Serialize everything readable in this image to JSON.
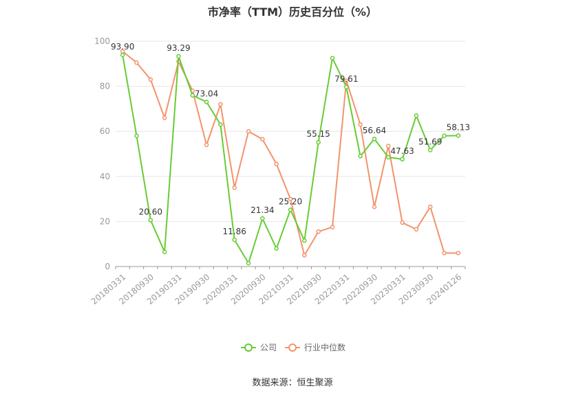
{
  "chart_data": {
    "type": "line",
    "title": "市净率（TTM）历史百分位（%）",
    "source": "数据来源：恒生聚源",
    "ylim": [
      0,
      100
    ],
    "y_ticks": [
      "0",
      "20",
      "40",
      "60",
      "80",
      "100"
    ],
    "x_tick_labels": [
      "20180331",
      "20180930",
      "20190331",
      "20190930",
      "20200331",
      "20200930",
      "20210331",
      "20210930",
      "20220331",
      "20220930",
      "20230331",
      "20230930",
      "20240126"
    ],
    "grid": true,
    "legend_position": "bottom",
    "series": [
      {
        "name": "公司",
        "color": "#66cc33",
        "values": [
          93.9,
          58.0,
          20.6,
          6.5,
          93.29,
          76.0,
          73.04,
          63.0,
          11.86,
          1.5,
          21.34,
          8.0,
          25.2,
          11.5,
          55.15,
          92.5,
          79.61,
          49.0,
          56.64,
          48.5,
          47.63,
          67.0,
          51.69,
          58.0,
          58.13
        ],
        "labels": [
          "93.90",
          "",
          "20.60",
          "",
          "93.29",
          "",
          "73.04",
          "",
          "11.86",
          "",
          "21.34",
          "",
          "25.20",
          "",
          "55.15",
          "",
          "79.61",
          "",
          "56.64",
          "",
          "47.63",
          "",
          "51.69",
          "",
          "58.13"
        ]
      },
      {
        "name": "行业中位数",
        "color": "#f4926b",
        "values": [
          95.5,
          90.5,
          83.0,
          66.0,
          91.0,
          78.0,
          54.0,
          72.0,
          35.0,
          60.0,
          56.5,
          45.5,
          30.0,
          5.0,
          15.5,
          17.5,
          82.5,
          63.0,
          26.5,
          53.5,
          19.5,
          16.5,
          26.5,
          6.0,
          6.0
        ]
      }
    ]
  }
}
